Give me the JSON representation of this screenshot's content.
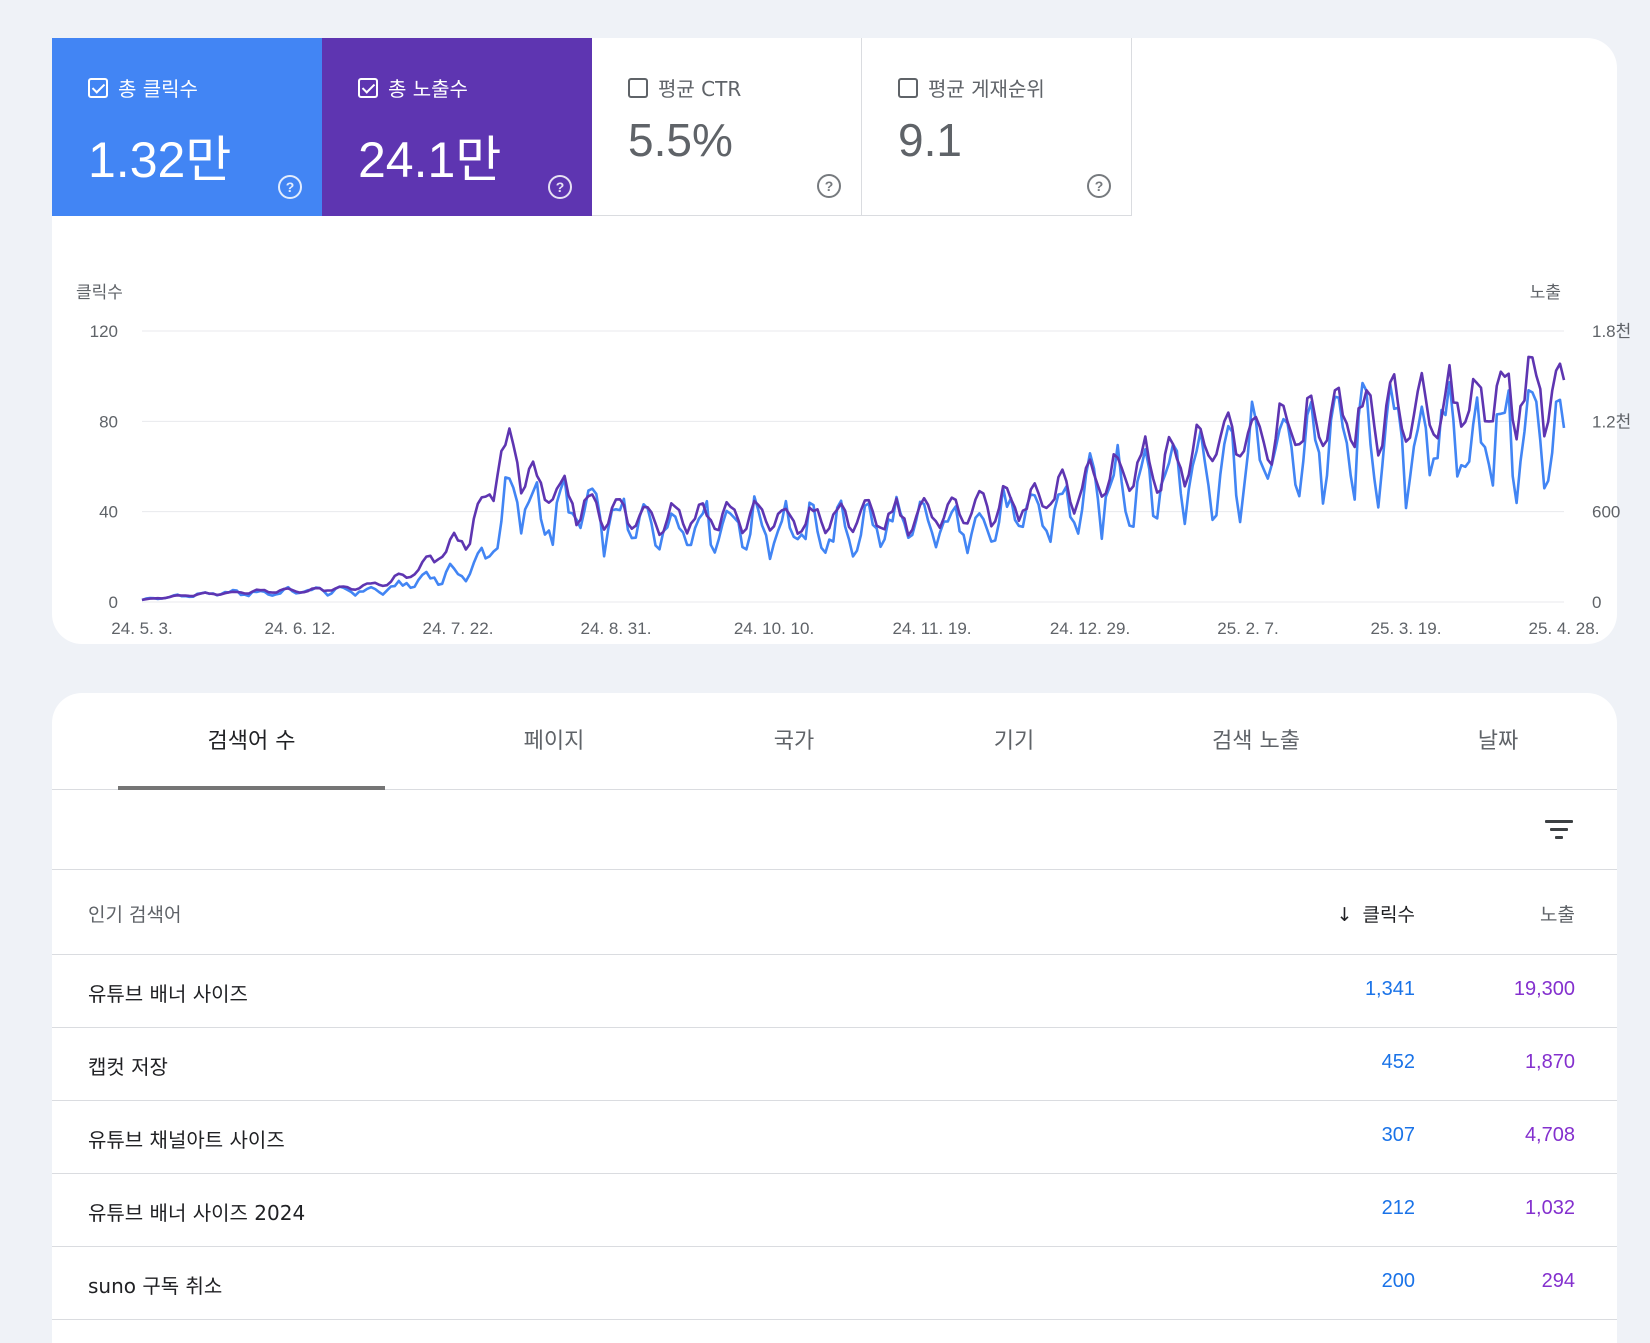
{
  "colors": {
    "clicks": "#4285f4",
    "impressions": "#5e35b1",
    "clicks_text": "#1a73e8",
    "impressions_text": "#8430ce"
  },
  "metrics": [
    {
      "label": "총 클릭수",
      "value": "1.32만",
      "checked": true,
      "help": "?"
    },
    {
      "label": "총 노출수",
      "value": "24.1만",
      "checked": true,
      "help": "?"
    },
    {
      "label": "평균 CTR",
      "value": "5.5%",
      "checked": false,
      "help": "?"
    },
    {
      "label": "평균 게재순위",
      "value": "9.1",
      "checked": false,
      "help": "?"
    }
  ],
  "chart_data": {
    "type": "line",
    "ylabel_left": "클릭수",
    "ylabel_right": "노출",
    "y_left_ticks": [
      "120",
      "80",
      "40",
      "0"
    ],
    "y_right_ticks": [
      "1.8천",
      "1.2천",
      "600",
      "0"
    ],
    "ylim_left": [
      0,
      120
    ],
    "ylim_right": [
      0,
      1800
    ],
    "x_ticks": [
      "24. 5. 3.",
      "24. 6. 12.",
      "24. 7. 22.",
      "24. 8. 31.",
      "24. 10. 10.",
      "24. 11. 19.",
      "24. 12. 29.",
      "25. 2. 7.",
      "25. 3. 19.",
      "25. 4. 28."
    ],
    "grid": true,
    "series": [
      {
        "name": "클릭수",
        "axis": "left",
        "color": "#4285f4",
        "trend": [
          [
            0,
            1
          ],
          [
            8,
            3
          ],
          [
            15,
            4
          ],
          [
            22,
            4
          ],
          [
            28,
            5
          ],
          [
            35,
            5
          ],
          [
            42,
            5
          ],
          [
            50,
            11
          ],
          [
            56,
            13
          ],
          [
            60,
            20
          ],
          [
            62,
            38
          ],
          [
            65,
            44
          ],
          [
            67,
            46
          ],
          [
            70,
            36
          ],
          [
            75,
            42
          ],
          [
            80,
            36
          ],
          [
            90,
            34
          ],
          [
            100,
            35
          ],
          [
            110,
            33
          ],
          [
            120,
            31
          ],
          [
            130,
            34
          ],
          [
            140,
            33
          ],
          [
            150,
            37
          ],
          [
            158,
            39
          ],
          [
            163,
            44
          ],
          [
            170,
            52
          ],
          [
            178,
            55
          ],
          [
            185,
            60
          ],
          [
            190,
            62
          ],
          [
            200,
            68
          ],
          [
            210,
            71
          ],
          [
            220,
            70
          ],
          [
            226,
            73
          ],
          [
            232,
            72
          ],
          [
            240,
            73
          ],
          [
            247,
            74
          ]
        ]
      },
      {
        "name": "노출",
        "axis": "right",
        "color": "#5e35b1",
        "trend": [
          [
            0,
            15
          ],
          [
            8,
            45
          ],
          [
            15,
            60
          ],
          [
            22,
            75
          ],
          [
            28,
            75
          ],
          [
            35,
            90
          ],
          [
            42,
            120
          ],
          [
            48,
            210
          ],
          [
            52,
            330
          ],
          [
            56,
            420
          ],
          [
            60,
            660
          ],
          [
            62,
            960
          ],
          [
            65,
            990
          ],
          [
            68,
            780
          ],
          [
            75,
            660
          ],
          [
            85,
            570
          ],
          [
            95,
            570
          ],
          [
            105,
            570
          ],
          [
            115,
            540
          ],
          [
            125,
            570
          ],
          [
            135,
            570
          ],
          [
            145,
            630
          ],
          [
            155,
            660
          ],
          [
            162,
            750
          ],
          [
            170,
            870
          ],
          [
            178,
            930
          ],
          [
            185,
            1020
          ],
          [
            190,
            1080
          ],
          [
            200,
            1140
          ],
          [
            210,
            1200
          ],
          [
            220,
            1260
          ],
          [
            228,
            1320
          ],
          [
            236,
            1350
          ],
          [
            242,
            1440
          ],
          [
            247,
            1350
          ]
        ]
      }
    ]
  },
  "tabs": [
    "검색어 수",
    "페이지",
    "국가",
    "기기",
    "검색 노출",
    "날짜"
  ],
  "table": {
    "headers": {
      "query": "인기 검색어",
      "clicks": "클릭수",
      "sort_arrow": "↓",
      "impressions": "노출"
    },
    "rows": [
      {
        "query": "유튜브 배너 사이즈",
        "clicks": "1,341",
        "impressions": "19,300"
      },
      {
        "query": "캡컷 저장",
        "clicks": "452",
        "impressions": "1,870"
      },
      {
        "query": "유튜브 채널아트 사이즈",
        "clicks": "307",
        "impressions": "4,708"
      },
      {
        "query": "유튜브 배너 사이즈 2024",
        "clicks": "212",
        "impressions": "1,032"
      },
      {
        "query": "suno 구독 취소",
        "clicks": "200",
        "impressions": "294"
      }
    ]
  }
}
